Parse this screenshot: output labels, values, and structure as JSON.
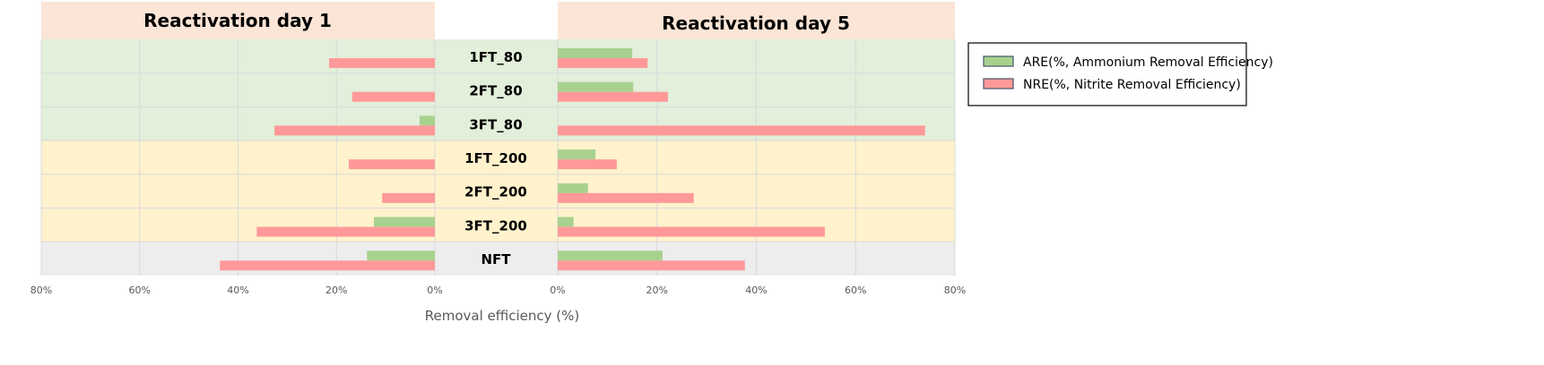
{
  "chart_data": {
    "type": "bar",
    "orientation": "horizontal-mirrored",
    "categories": [
      "1FT_80",
      "2FT_80",
      "3FT_80",
      "1FT_200",
      "2FT_200",
      "3FT_200",
      "NFT"
    ],
    "category_groups": [
      "80",
      "80",
      "80",
      "200",
      "200",
      "200",
      "none"
    ],
    "panels": [
      {
        "title": "Reactivation day 1",
        "direction": "left",
        "xlim": [
          0,
          80
        ],
        "ticks": [
          "80%",
          "60%",
          "40%",
          "20%",
          "0%"
        ],
        "series": [
          {
            "name": "ARE(%, Ammonium Removal Efficiency)",
            "values": [
              0,
              0,
              3.1,
              0,
              0,
              12.4,
              13.8
            ]
          },
          {
            "name": "NRE(%, Nitrite Removal Efficiency)",
            "values": [
              21.5,
              16.8,
              32.6,
              17.5,
              10.7,
              36.2,
              43.7
            ]
          }
        ]
      },
      {
        "title": "Reactivation day 5",
        "direction": "right",
        "xlim": [
          0,
          80
        ],
        "ticks": [
          "0%",
          "20%",
          "40%",
          "60%",
          "80%"
        ],
        "series": [
          {
            "name": "ARE(%, Ammonium Removal Efficiency)",
            "values": [
              15.0,
              15.2,
              0,
              7.6,
              6.1,
              3.2,
              21.1
            ]
          },
          {
            "name": "NRE(%, Nitrite Removal Efficiency)",
            "values": [
              18.1,
              22.2,
              74.0,
              11.9,
              27.4,
              53.8,
              37.7
            ]
          }
        ]
      }
    ],
    "xlabel": "Removal efficiency (%)",
    "legend": {
      "placement": "top-right",
      "entries": [
        "ARE(%, Ammonium Removal Efficiency)",
        "NRE(%, Nitrite Removal Efficiency)"
      ]
    },
    "grid": true,
    "colors": {
      "ARE": "#a9d18e",
      "NRE": "#ff9999",
      "group_80": "#e2efda",
      "group_200": "#fff2cc",
      "group_none": "#ededed",
      "header": "#fbe5d6"
    }
  }
}
